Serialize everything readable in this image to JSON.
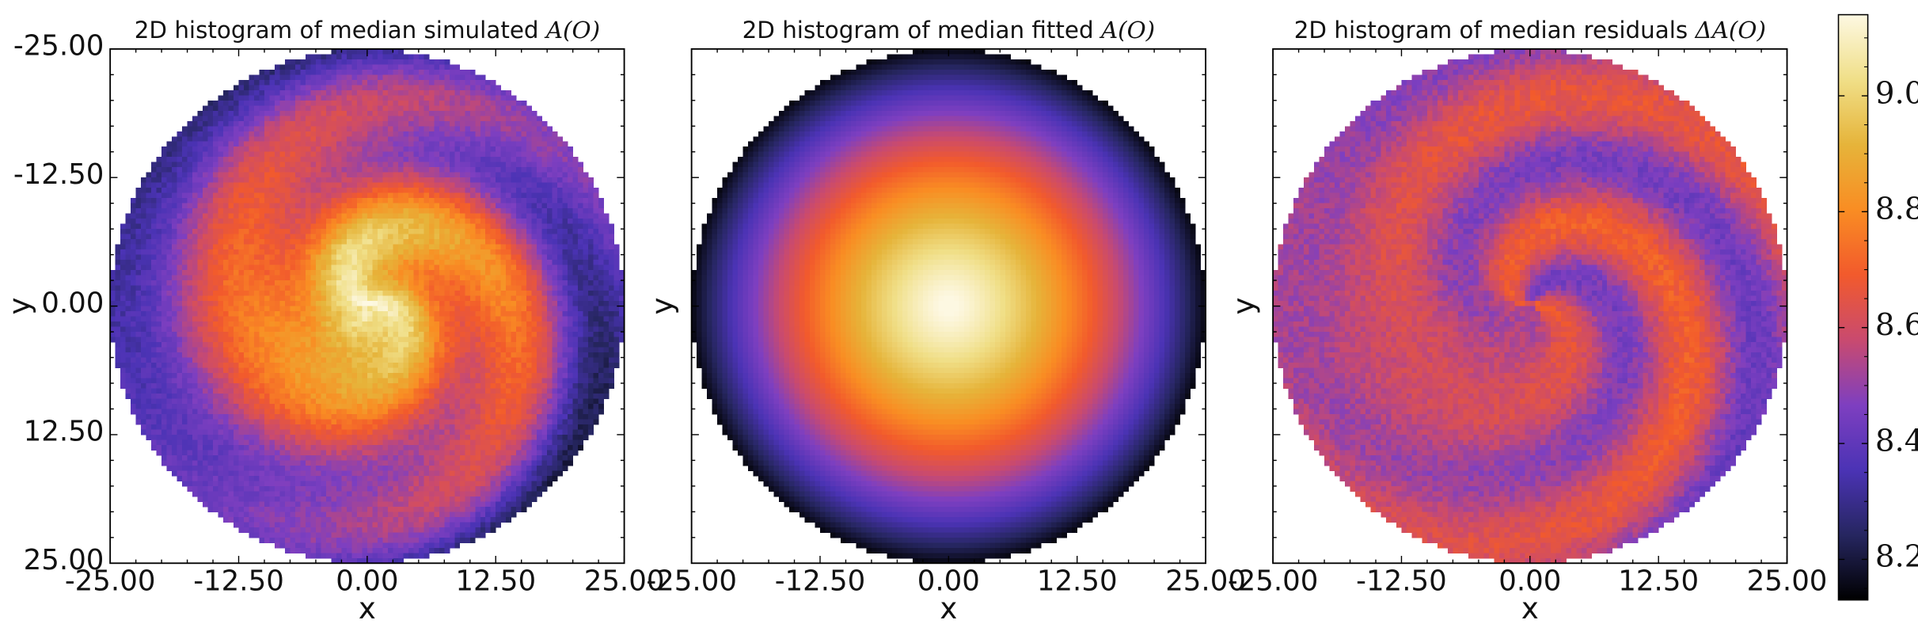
{
  "chart_data": [
    {
      "type": "heatmap",
      "title_text": "2D histogram of median simulated ",
      "title_math": "A(O)",
      "xlabel": "x",
      "ylabel": "y",
      "xlim": [
        -25,
        25
      ],
      "ylim": [
        -25,
        25
      ],
      "y_inverted": true,
      "xticks": [
        "-25.00",
        "-12.50",
        "0.00",
        "12.50",
        "25.00"
      ],
      "yticks": [
        "-25.00",
        "-12.50",
        "0.00",
        "12.50",
        "25.00"
      ],
      "show_ylabels": true,
      "field": "simulated",
      "central_value": 9.1,
      "edge_value": 8.35,
      "mask_radius": 25,
      "description_of_features": [
        "spiral arms",
        "bright center"
      ]
    },
    {
      "type": "heatmap",
      "title_text": "2D histogram of median fitted ",
      "title_math": "A(O)",
      "xlabel": "x",
      "ylabel": "y",
      "xlim": [
        -25,
        25
      ],
      "ylim": [
        -25,
        25
      ],
      "y_inverted": true,
      "xticks": [
        "-25.00",
        "-12.50",
        "0.00",
        "12.50",
        "25.00"
      ],
      "yticks": [],
      "show_ylabels": false,
      "field": "fitted",
      "central_value": 9.15,
      "edge_value": 8.15,
      "mask_radius": 25
    },
    {
      "type": "heatmap",
      "title_text": "2D histogram of median residuals ",
      "title_math": "ΔA(O)",
      "xlabel": "x",
      "ylabel": "y",
      "xlim": [
        -25,
        25
      ],
      "ylim": [
        -25,
        25
      ],
      "y_inverted": true,
      "xticks": [
        "-25.00",
        "-12.50",
        "0.00",
        "12.50",
        "25.00"
      ],
      "yticks": [],
      "show_ylabels": false,
      "field": "residuals",
      "central_value": 8.6,
      "edge_value": 8.55,
      "mask_radius": 25
    }
  ],
  "colorbar": {
    "colormap": "CMRmap-like (black → indigo → purple → red → orange → yellow → cream)",
    "range": [
      8.13,
      9.14
    ],
    "ticks": [
      "8.2",
      "8.4",
      "8.6",
      "8.8",
      "9.0"
    ],
    "tick_values": [
      8.2,
      8.4,
      8.6,
      8.8,
      9.0
    ]
  },
  "colors": {
    "cmap_stops": [
      "#000000",
      "#262660",
      "#4b33b5",
      "#7e3fc0",
      "#c94a6f",
      "#f25a2c",
      "#f98d23",
      "#e6b43a",
      "#f0df88",
      "#fdf8e2"
    ]
  }
}
